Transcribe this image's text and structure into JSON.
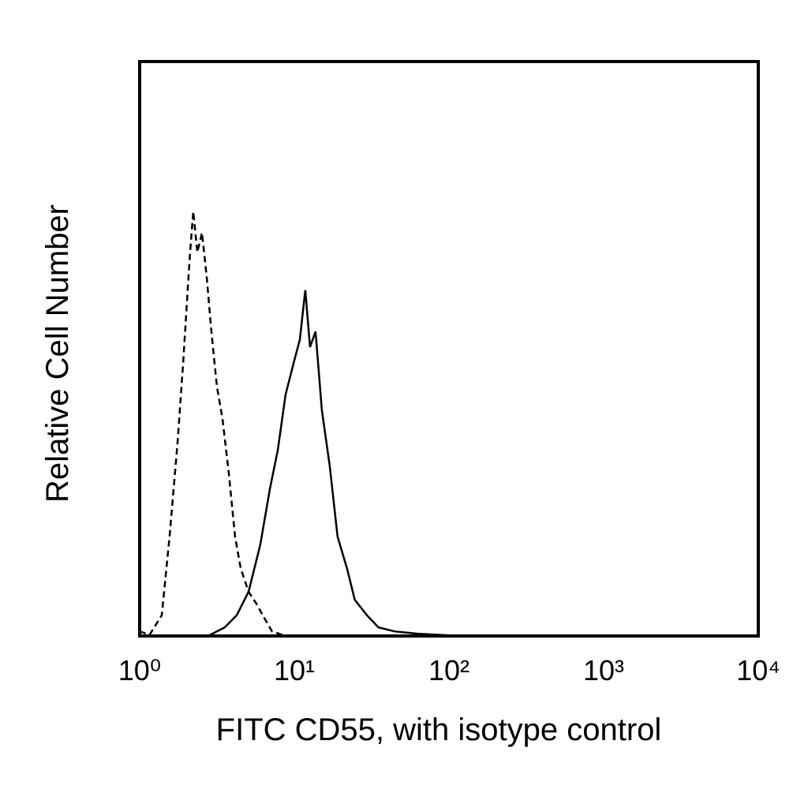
{
  "chart_data": {
    "type": "line",
    "x_label": "FITC CD55, with isotype control",
    "y_label": "Relative Cell Number",
    "xscale": "log",
    "xlim": [
      1,
      10000
    ],
    "xticks": [
      {
        "value": 1,
        "label": "10⁰"
      },
      {
        "value": 10,
        "label": "10¹"
      },
      {
        "value": 100,
        "label": "10²"
      },
      {
        "value": 1000,
        "label": "10³"
      },
      {
        "value": 10000,
        "label": "10⁴"
      }
    ],
    "ylim": [
      0,
      100
    ],
    "grid": false,
    "series": [
      {
        "color": "#000000",
        "dashed": true,
        "x": [
          1,
          1.16,
          1.39,
          1.56,
          1.76,
          1.91,
          2.1,
          2.22,
          2.36,
          2.53,
          2.71,
          2.91,
          3.16,
          3.43,
          3.77,
          4.14,
          4.5,
          5.06,
          5.69,
          6.25,
          7.18,
          8.58
        ],
        "values": [
          0.8,
          0.2,
          3.6,
          17.3,
          33.8,
          47.5,
          65.4,
          73.9,
          66.8,
          70.2,
          62.6,
          53.0,
          43.4,
          37.9,
          28.3,
          17.3,
          11.8,
          7.7,
          5.6,
          3.6,
          0.8,
          0.1
        ]
      },
      {
        "color": "#000000",
        "dashed": false,
        "x": [
          2.81,
          3.55,
          4.24,
          5.06,
          6.03,
          6.94,
          7.82,
          8.78,
          9.89,
          10.86,
          11.78,
          12.64,
          13.72,
          15.06,
          16.93,
          19.03,
          21.89,
          24.6,
          29.5,
          35.0,
          44.5,
          63.0,
          101
        ],
        "values": [
          0.1,
          1.5,
          3.6,
          7.7,
          15.9,
          25.5,
          32.4,
          42.0,
          47.5,
          51.6,
          60.2,
          50.3,
          53.0,
          39.3,
          29.7,
          17.3,
          11.8,
          6.3,
          3.6,
          1.5,
          0.8,
          0.4,
          0.1
        ]
      }
    ]
  }
}
